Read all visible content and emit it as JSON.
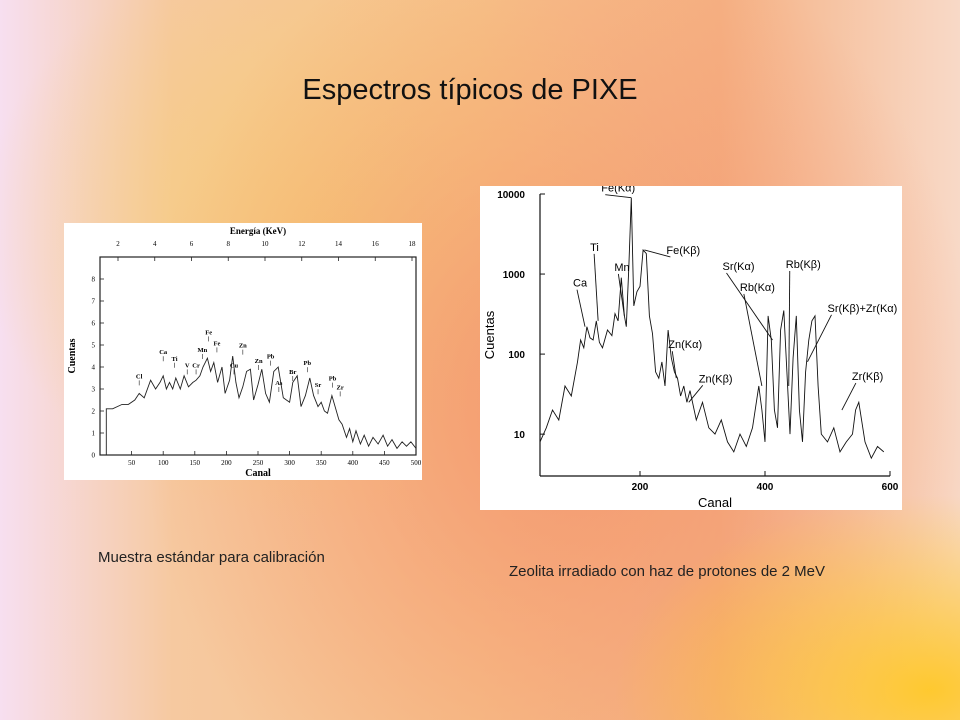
{
  "slide": {
    "title": "Espectros típicos de PIXE",
    "caption_left": "Muestra  estándar para calibración",
    "caption_right": "Zeolita irradiado con haz de protones de 2 MeV"
  },
  "chart_data": [
    {
      "type": "line",
      "title": "",
      "xlabel": "Canal",
      "ylabel": "Cuentas",
      "top_axis_label": "Energía  (KeV)",
      "xlim": [
        0,
        500
      ],
      "ylim": [
        0,
        9
      ],
      "top_ticks": [
        "2",
        "4",
        "6",
        "8",
        "10",
        "12",
        "14",
        "16",
        "18"
      ],
      "x_ticks": [
        "50",
        "100",
        "150",
        "200",
        "250",
        "300",
        "350",
        "400",
        "450",
        "500"
      ],
      "y_ticks": [
        "0",
        "1",
        "2",
        "3",
        "4",
        "5",
        "6",
        "7",
        "8"
      ],
      "series": [
        {
          "x": [
            0,
            10,
            10,
            20,
            35,
            45,
            55,
            62,
            70,
            80,
            88,
            95,
            100,
            105,
            110,
            115,
            120,
            127,
            133,
            140,
            147,
            152,
            158,
            163,
            170,
            175,
            180,
            186,
            193,
            198,
            205,
            210,
            215,
            220,
            226,
            232,
            238,
            243,
            250,
            256,
            262,
            268,
            275,
            282,
            290,
            295,
            300,
            305,
            312,
            318,
            325,
            332,
            338,
            345,
            350,
            355,
            360,
            367,
            372,
            378,
            383,
            390,
            395,
            400,
            405,
            412,
            418,
            425,
            432,
            440,
            448,
            455,
            462,
            470,
            478,
            485,
            492,
            500
          ],
          "y": [
            0,
            0,
            2.1,
            2.1,
            2.3,
            2.3,
            2.5,
            2.8,
            2.6,
            3.4,
            3.0,
            3.3,
            3.6,
            3.0,
            3.3,
            3.0,
            3.5,
            3.0,
            3.6,
            3.1,
            3.3,
            3.4,
            3.6,
            4.0,
            4.4,
            3.8,
            4.2,
            3.3,
            4.0,
            2.8,
            3.4,
            4.5,
            3.3,
            2.6,
            3.1,
            3.8,
            3.9,
            2.5,
            3.2,
            3.9,
            2.8,
            2.4,
            3.8,
            4.0,
            2.6,
            2.5,
            2.4,
            3.3,
            3.6,
            2.2,
            2.7,
            3.5,
            2.7,
            2.2,
            2.4,
            2.0,
            1.9,
            2.7,
            2.2,
            1.6,
            1.4,
            0.8,
            1.2,
            0.6,
            1.1,
            0.5,
            0.9,
            0.4,
            0.8,
            0.5,
            0.9,
            0.4,
            0.7,
            0.3,
            0.6,
            0.4,
            0.6,
            0.3
          ]
        }
      ],
      "annotations": [
        {
          "label": "Cl",
          "x": 62,
          "y": 3.3
        },
        {
          "label": "Ca",
          "x": 100,
          "y": 4.4
        },
        {
          "label": "Ti",
          "x": 118,
          "y": 4.1
        },
        {
          "label": "V",
          "x": 138,
          "y": 3.8
        },
        {
          "label": "Cr",
          "x": 152,
          "y": 3.8
        },
        {
          "label": "Mn",
          "x": 162,
          "y": 4.5
        },
        {
          "label": "Fe",
          "x": 172,
          "y": 5.3
        },
        {
          "label": "Fe",
          "x": 185,
          "y": 4.8
        },
        {
          "label": "Cu",
          "x": 212,
          "y": 3.8
        },
        {
          "label": "Zn",
          "x": 226,
          "y": 4.7
        },
        {
          "label": "Zn",
          "x": 251,
          "y": 4.0
        },
        {
          "label": "Pb",
          "x": 270,
          "y": 4.2
        },
        {
          "label": "As",
          "x": 283,
          "y": 3.0
        },
        {
          "label": "Br",
          "x": 305,
          "y": 3.5
        },
        {
          "label": "Pb",
          "x": 328,
          "y": 3.9
        },
        {
          "label": "Sr",
          "x": 345,
          "y": 2.9
        },
        {
          "label": "Pb",
          "x": 368,
          "y": 3.2
        },
        {
          "label": "Zr",
          "x": 380,
          "y": 2.8
        }
      ]
    },
    {
      "type": "line",
      "title": "",
      "xlabel": "Canal",
      "ylabel": "Cuentas",
      "yscale": "log",
      "xlim": [
        40,
        600
      ],
      "ylim": [
        3,
        10000
      ],
      "x_ticks": [
        "200",
        "400",
        "600"
      ],
      "y_ticks": [
        "10",
        "100",
        "1000",
        "10000"
      ],
      "series": [
        {
          "x": [
            40,
            50,
            60,
            70,
            80,
            90,
            100,
            105,
            110,
            115,
            120,
            125,
            130,
            135,
            140,
            148,
            155,
            160,
            165,
            170,
            175,
            178,
            182,
            186,
            190,
            195,
            200,
            205,
            210,
            215,
            220,
            225,
            230,
            235,
            240,
            245,
            250,
            255,
            260,
            265,
            270,
            275,
            280,
            290,
            300,
            310,
            320,
            330,
            340,
            350,
            360,
            370,
            380,
            390,
            395,
            400,
            405,
            410,
            415,
            420,
            425,
            430,
            435,
            440,
            445,
            450,
            455,
            460,
            465,
            470,
            475,
            480,
            485,
            490,
            500,
            510,
            520,
            530,
            540,
            545,
            550,
            560,
            570,
            580,
            590
          ],
          "y": [
            8,
            12,
            20,
            15,
            40,
            30,
            80,
            150,
            120,
            220,
            160,
            150,
            260,
            140,
            120,
            200,
            170,
            320,
            260,
            900,
            300,
            220,
            1200,
            9000,
            400,
            600,
            700,
            2000,
            1800,
            300,
            180,
            60,
            50,
            80,
            40,
            200,
            90,
            60,
            50,
            30,
            40,
            25,
            35,
            15,
            25,
            12,
            10,
            15,
            8,
            6,
            10,
            7,
            12,
            40,
            20,
            8,
            300,
            150,
            20,
            12,
            200,
            350,
            60,
            10,
            90,
            300,
            20,
            8,
            60,
            150,
            260,
            300,
            40,
            10,
            8,
            12,
            6,
            8,
            10,
            20,
            25,
            8,
            5,
            7,
            6
          ]
        }
      ],
      "annotations": [
        {
          "label": "Ca",
          "x": 112,
          "y": 220
        },
        {
          "label": "Ti",
          "x": 133,
          "y": 260
        },
        {
          "label": "Mn",
          "x": 175,
          "y": 300
        },
        {
          "label": "Fe(Kα)",
          "x": 186,
          "y": 9000
        },
        {
          "label": "Fe(Kβ)",
          "x": 207,
          "y": 2000
        },
        {
          "label": "Zn(Kα)",
          "x": 258,
          "y": 50
        },
        {
          "label": "Zn(Kβ)",
          "x": 278,
          "y": 25
        },
        {
          "label": "Rb(Kα)",
          "x": 395,
          "y": 40
        },
        {
          "label": "Rb(Kβ)",
          "x": 438,
          "y": 40
        },
        {
          "label": "Sr(Kα)",
          "x": 412,
          "y": 150
        },
        {
          "label": "Sr(Kβ)+Zr(Kα)",
          "x": 468,
          "y": 80
        },
        {
          "label": "Zr(Kβ)",
          "x": 523,
          "y": 20
        }
      ]
    }
  ]
}
